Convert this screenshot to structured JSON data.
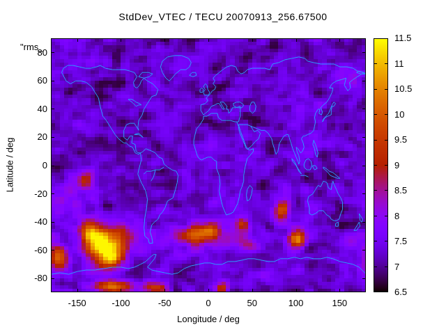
{
  "title": "StdDev_VTEC / TECU 20070913_256.67500",
  "key_label": "\"rms_",
  "x_axis": {
    "label": "Longitude / deg",
    "range": [
      -180,
      180
    ],
    "ticks": [
      -150,
      -100,
      -50,
      0,
      50,
      100,
      150
    ]
  },
  "y_axis": {
    "label": "Latitude / deg",
    "range": [
      -90,
      90
    ],
    "ticks": [
      80,
      60,
      40,
      20,
      0,
      -20,
      -40,
      -60,
      -80
    ]
  },
  "colorbar": {
    "range": [
      6.5,
      11.5
    ],
    "ticks": [
      {
        "v": 6.5,
        "label": "6.5"
      },
      {
        "v": 7,
        "label": "7"
      },
      {
        "v": 7.5,
        "label": "7.5"
      },
      {
        "v": 8,
        "label": "8"
      },
      {
        "v": 8.5,
        "label": "8.5"
      },
      {
        "v": 9,
        "label": "9"
      },
      {
        "v": 9.5,
        "label": "9.5"
      },
      {
        "v": 10,
        "label": "10"
      },
      {
        "v": 10.5,
        "label": "10.5"
      },
      {
        "v": 11,
        "label": "11"
      },
      {
        "v": 11.5,
        "label": "11.5"
      }
    ]
  },
  "colors": {
    "coastline": "#2E9BFF",
    "frame": "#000000",
    "text": "#000000",
    "background": "#ffffff"
  },
  "chart_data": {
    "type": "heatmap",
    "title": "StdDev_VTEC / TECU 20070913_256.67500",
    "xlabel": "Longitude / deg",
    "ylabel": "Latitude / deg",
    "xlim": [
      -180,
      180
    ],
    "ylim": [
      -90,
      90
    ],
    "value_range": [
      6.5,
      11.5
    ],
    "palette": {
      "model": "gnuplot_rgbformulae_7_5_15",
      "r": "sqrt(t)",
      "g": "t^3",
      "b": "max(0,sin(2*pi*t))"
    },
    "grid": {
      "nx": 72,
      "ny": 72,
      "lon_step": 5,
      "lat_step": 2.5
    },
    "background": {
      "base": 7.25,
      "fine_noise_amp": 0.85,
      "coarse_noise_amp": 0.28,
      "coarse_cells": 12,
      "clamp": [
        6.7,
        11.45
      ],
      "seed": 20070913
    },
    "hotspots": [
      {
        "lon": -123,
        "lat": -56,
        "peak": 11.4,
        "slon": 13,
        "slat": 8
      },
      {
        "lon": -136,
        "lat": -46,
        "peak": 9.6,
        "slon": 7,
        "slat": 5
      },
      {
        "lon": -110,
        "lat": -66,
        "peak": 9.9,
        "slon": 9,
        "slat": 5
      },
      {
        "lon": -100,
        "lat": -52,
        "peak": 8.6,
        "slon": 12,
        "slat": 8
      },
      {
        "lon": -172,
        "lat": -66,
        "peak": 9.9,
        "slon": 8,
        "slat": 6
      },
      {
        "lon": -140,
        "lat": -9,
        "peak": 8.9,
        "slon": 7,
        "slat": 5
      },
      {
        "lon": -165,
        "lat": -27,
        "peak": 8.0,
        "slon": 12,
        "slat": 8
      },
      {
        "lon": -15,
        "lat": -49,
        "peak": 9.7,
        "slon": 13,
        "slat": 4.5
      },
      {
        "lon": 4,
        "lat": -46,
        "peak": 8.9,
        "slon": 7,
        "slat": 4
      },
      {
        "lon": 40,
        "lat": -42,
        "peak": 9.2,
        "slon": 5,
        "slat": 3.5
      },
      {
        "lon": 45,
        "lat": -56,
        "peak": 8.3,
        "slon": 10,
        "slat": 4
      },
      {
        "lon": 84,
        "lat": -32,
        "peak": 9.9,
        "slon": 6,
        "slat": 5
      },
      {
        "lon": 101,
        "lat": -52,
        "peak": 10.4,
        "slon": 7,
        "slat": 4.5
      },
      {
        "lon": 165,
        "lat": -55,
        "peak": 8.2,
        "slon": 12,
        "slat": 6
      },
      {
        "lon": -110,
        "lat": -86,
        "peak": 10.3,
        "slon": 16,
        "slat": 3.5
      },
      {
        "lon": -60,
        "lat": -87,
        "peak": 9.7,
        "slon": 10,
        "slat": 3
      },
      {
        "lon": 15,
        "lat": -87,
        "peak": 9.6,
        "slon": 6,
        "slat": 3
      },
      {
        "lon": 165,
        "lat": 63,
        "peak": 7.9,
        "slon": 10,
        "slat": 6
      },
      {
        "lon": 8,
        "lat": 15,
        "peak": 7.9,
        "slon": 8,
        "slat": 6
      },
      {
        "lon": 110,
        "lat": 10,
        "peak": 7.8,
        "slon": 12,
        "slat": 8
      },
      {
        "lon": 0,
        "lat": -50,
        "peak": 7.9,
        "slon": 60,
        "slat": 8
      }
    ],
    "coastlines": [
      [
        -166,
        69,
        -168,
        66,
        -163,
        60,
        -158,
        58,
        -152,
        60,
        -146,
        60,
        -140,
        59,
        -134,
        56,
        -130,
        52,
        -126,
        48,
        -124,
        42,
        -121,
        35,
        -117,
        32,
        -112,
        27,
        -107,
        22,
        -103,
        19,
        -97,
        16,
        -94,
        16,
        -91,
        14,
        -87,
        13,
        -84,
        9,
        -80,
        8,
        -78,
        9
      ],
      [
        -166,
        69,
        -161,
        71,
        -155,
        71,
        -148,
        70,
        -141,
        69,
        -135,
        69,
        -128,
        70,
        -124,
        71,
        -118,
        69,
        -110,
        68,
        -103,
        68,
        -96,
        68,
        -90,
        67,
        -85,
        66,
        -82,
        63,
        -86,
        59,
        -85,
        56,
        -82,
        55,
        -79,
        57,
        -77,
        60,
        -74,
        62,
        -70,
        60,
        -64,
        58,
        -58,
        54,
        -60,
        50,
        -65,
        49,
        -70,
        44,
        -74,
        40,
        -76,
        36,
        -80,
        32,
        -81,
        27,
        -80,
        25,
        -82,
        27,
        -85,
        30,
        -90,
        30,
        -94,
        29,
        -97,
        25,
        -97,
        20,
        -93,
        18,
        -90,
        21,
        -87,
        21,
        -88,
        16,
        -84,
        15,
        -83,
        10,
        -80,
        9,
        -78,
        9
      ],
      [
        -92,
        47,
        -88,
        47,
        -85,
        46,
        -83,
        45,
        -79,
        44,
        -77,
        43,
        -80,
        43,
        -83,
        42,
        -86,
        44,
        -90,
        46,
        -92,
        47
      ],
      [
        -80,
        63,
        -76,
        66,
        -69,
        66,
        -64,
        65,
        -68,
        63,
        -74,
        62,
        -80,
        63
      ],
      [
        -85,
        22,
        -80,
        23,
        -75,
        20,
        -80,
        22,
        -85,
        22
      ],
      [
        -78,
        9,
        -77,
        4,
        -80,
        -3,
        -81,
        -6,
        -77,
        -12,
        -72,
        -18,
        -70,
        -24,
        -71,
        -30,
        -73,
        -37,
        -74,
        -44,
        -73,
        -50,
        -69,
        -52,
        -68,
        -55,
        -64,
        -55,
        -65,
        -51,
        -67,
        -47,
        -65,
        -42,
        -62,
        -40,
        -58,
        -38,
        -56,
        -35,
        -53,
        -33,
        -50,
        -30,
        -47,
        -25,
        -41,
        -23,
        -38,
        -17,
        -36,
        -12,
        -35,
        -7,
        -37,
        -4,
        -42,
        -3,
        -47,
        -1,
        -51,
        1,
        -53,
        5,
        -57,
        6,
        -61,
        9,
        -64,
        10,
        -68,
        11,
        -72,
        12,
        -75,
        10,
        -78,
        9
      ],
      [
        -51,
        -1,
        -56,
        -3,
        -61,
        -3,
        -66,
        -4,
        -71,
        -4,
        -74,
        -6
      ],
      [
        -61,
        -3,
        -63,
        -8,
        -66,
        -11
      ],
      [
        -45,
        60,
        -49,
        62,
        -53,
        66,
        -55,
        70,
        -53,
        74,
        -47,
        77,
        -39,
        78,
        -31,
        78,
        -23,
        76,
        -20,
        73,
        -22,
        70,
        -26,
        68,
        -32,
        68,
        -38,
        65,
        -42,
        62,
        -45,
        60
      ],
      [
        -22,
        64,
        -19,
        66,
        -15,
        66,
        -14,
        64,
        -18,
        63,
        -22,
        64
      ],
      [
        -5,
        50,
        -6,
        52,
        -4,
        54,
        -6,
        56,
        -4,
        58,
        -2,
        57,
        -1,
        54,
        1,
        52,
        0,
        50,
        -5,
        50
      ],
      [
        -10,
        52,
        -10,
        54,
        -8,
        55,
        -6,
        54,
        -7,
        52,
        -10,
        52
      ],
      [
        -9,
        43,
        -4,
        44,
        -1,
        46,
        -3,
        48,
        -1,
        49,
        2,
        51,
        4,
        53,
        7,
        54,
        8,
        56,
        5,
        58,
        7,
        60,
        5,
        62,
        8,
        64,
        12,
        66,
        16,
        68,
        21,
        70,
        26,
        71,
        31,
        70,
        33,
        67,
        37,
        65,
        41,
        66,
        44,
        68,
        50,
        69,
        57,
        69,
        64,
        69,
        70,
        68,
        73,
        72,
        80,
        73,
        87,
        75,
        95,
        76,
        103,
        77,
        110,
        76,
        113,
        74,
        120,
        73,
        128,
        72,
        136,
        72,
        143,
        72,
        150,
        70,
        158,
        70,
        165,
        69,
        170,
        67,
        177,
        66,
        180,
        65
      ],
      [
        -9,
        43,
        -9,
        39,
        -7,
        37,
        -6,
        36,
        -4,
        37,
        0,
        39,
        3,
        42,
        7,
        43,
        10,
        44,
        12,
        44,
        14,
        42,
        16,
        40,
        18,
        40,
        16,
        42,
        13,
        45,
        17,
        45,
        21,
        42,
        20,
        40,
        22,
        40,
        23,
        37,
        24,
        38,
        26,
        39,
        27,
        41,
        31,
        41,
        36,
        42,
        36,
        37,
        36,
        35,
        35,
        33,
        34,
        31,
        32,
        31
      ],
      [
        28,
        44,
        32,
        45,
        36,
        45,
        40,
        43,
        38,
        41,
        33,
        41,
        29,
        42,
        28,
        44
      ],
      [
        50,
        37,
        53,
        39,
        54,
        42,
        52,
        45,
        49,
        45,
        47,
        42,
        47,
        39,
        50,
        37
      ],
      [
        -6,
        35,
        -2,
        35,
        3,
        37,
        10,
        37,
        11,
        34,
        15,
        32,
        20,
        32,
        25,
        32,
        30,
        31,
        32,
        31,
        34,
        28,
        35,
        24,
        37,
        21,
        39,
        18,
        41,
        15,
        43,
        12,
        47,
        11,
        51,
        12,
        51,
        10,
        47,
        7,
        44,
        5,
        42,
        0,
        41,
        -3,
        40,
        -7,
        40,
        -11,
        38,
        -15,
        36,
        -18,
        35,
        -22,
        33,
        -27,
        28,
        -33,
        25,
        -34,
        20,
        -35,
        18,
        -32,
        16,
        -29,
        14,
        -24,
        12,
        -18,
        13,
        -13,
        12,
        -7,
        9,
        -2,
        9,
        3,
        6,
        4,
        3,
        6,
        -1,
        6,
        -5,
        5,
        -8,
        4,
        -11,
        5,
        -13,
        7,
        -15,
        11,
        -17,
        15,
        -17,
        18,
        -16,
        21,
        -14,
        26,
        -10,
        29,
        -6,
        33,
        -6,
        35
      ],
      [
        44,
        -25,
        43,
        -21,
        44,
        -17,
        47,
        -14,
        50,
        -16,
        49,
        -20,
        47,
        -24,
        44,
        -25
      ],
      [
        34,
        29,
        36,
        25,
        39,
        20,
        43,
        13,
        45,
        12,
        49,
        14,
        53,
        17,
        57,
        19,
        59,
        23,
        56,
        25,
        52,
        24,
        48,
        28,
        44,
        29,
        40,
        29,
        34,
        29
      ],
      [
        48,
        28,
        52,
        27,
        56,
        26,
        60,
        25,
        64,
        25,
        68,
        23,
        70,
        21,
        72,
        19,
        73,
        16,
        75,
        12,
        77,
        8,
        79,
        10,
        80,
        13,
        81,
        16,
        83,
        18,
        86,
        21,
        89,
        22,
        91,
        22,
        92,
        20,
        94,
        16,
        96,
        12,
        98,
        9,
        100,
        6,
        102,
        3,
        103,
        1,
        104,
        3,
        103,
        7,
        101,
        10,
        100,
        13,
        102,
        12,
        105,
        9,
        107,
        10,
        109,
        13,
        108,
        16,
        106,
        19,
        108,
        21,
        110,
        21,
        113,
        22,
        117,
        23,
        120,
        25,
        121,
        28,
        122,
        31,
        121,
        34,
        122,
        37,
        125,
        40,
        127,
        40,
        126,
        37,
        129,
        36,
        130,
        38,
        128,
        41,
        131,
        43,
        135,
        45,
        138,
        48,
        141,
        52,
        142,
        55,
        138,
        55,
        141,
        58,
        146,
        60,
        152,
        61,
        157,
        62,
        155,
        57,
        159,
        53,
        162,
        55,
        161,
        59,
        165,
        61,
        170,
        63,
        175,
        65,
        180,
        65
      ],
      [
        130,
        31,
        133,
        34,
        136,
        35,
        140,
        36,
        140,
        39,
        141,
        42,
        143,
        42,
        145,
        44,
        143,
        45,
        141,
        43,
        139,
        40,
        137,
        37,
        134,
        35,
        131,
        33,
        130,
        31
      ],
      [
        95,
        5,
        98,
        3,
        101,
        -1,
        104,
        -4,
        106,
        -6,
        103,
        -4,
        100,
        0,
        96,
        3,
        95,
        5
      ],
      [
        105,
        -7,
        110,
        -7,
        114,
        -8
      ],
      [
        109,
        1,
        111,
        4,
        114,
        5,
        117,
        3,
        118,
        0,
        116,
        -3,
        112,
        -3,
        109,
        -1,
        109,
        1
      ],
      [
        119,
        0,
        122,
        0,
        124,
        -2,
        121,
        -3,
        119,
        -1,
        119,
        0
      ],
      [
        120,
        18,
        122,
        15,
        123,
        13,
        125,
        9,
        124,
        6,
        122,
        8,
        121,
        12,
        119,
        15,
        120,
        18
      ],
      [
        131,
        -1,
        134,
        -2,
        138,
        -4,
        142,
        -5,
        146,
        -7,
        150,
        -9,
        147,
        -9,
        143,
        -8,
        139,
        -7,
        135,
        -4,
        131,
        -2,
        131,
        -1
      ],
      [
        114,
        -22,
        113,
        -25,
        115,
        -30,
        115,
        -34,
        118,
        -35,
        122,
        -34,
        126,
        -32,
        131,
        -32,
        135,
        -35,
        138,
        -36,
        140,
        -38,
        143,
        -39,
        146,
        -39,
        149,
        -38,
        151,
        -34,
        153,
        -31,
        153,
        -26,
        151,
        -23,
        148,
        -20,
        146,
        -17,
        143,
        -13,
        142,
        -11,
        141,
        -13,
        140,
        -17,
        137,
        -16,
        135,
        -12,
        131,
        -11,
        128,
        -15,
        125,
        -14,
        122,
        -17,
        119,
        -20,
        114,
        -22
      ],
      [
        145,
        -41,
        148,
        -40,
        148,
        -43,
        145,
        -43,
        145,
        -41
      ],
      [
        172,
        -34,
        174,
        -36,
        176,
        -38,
        175,
        -40,
        173,
        -39,
        172,
        -34
      ],
      [
        172,
        -40,
        170,
        -42,
        167,
        -45,
        166,
        -46,
        169,
        -46,
        171,
        -44,
        173,
        -43,
        172,
        -40
      ],
      [
        -180,
        -77,
        -170,
        -76,
        -160,
        -77,
        -150,
        -75,
        -140,
        -74,
        -130,
        -74,
        -120,
        -73,
        -110,
        -72,
        -100,
        -72,
        -92,
        -73,
        -85,
        -72,
        -78,
        -70,
        -72,
        -68,
        -67,
        -65,
        -63,
        -63,
        -60,
        -63,
        -62,
        -66,
        -66,
        -69,
        -70,
        -72,
        -65,
        -74,
        -58,
        -75,
        -50,
        -76,
        -42,
        -77,
        -35,
        -76,
        -28,
        -73,
        -20,
        -71,
        -12,
        -70,
        -5,
        -69,
        2,
        -69,
        8,
        -70,
        15,
        -70,
        22,
        -68,
        30,
        -68,
        38,
        -67,
        45,
        -66,
        52,
        -66,
        60,
        -67,
        68,
        -68,
        75,
        -68,
        82,
        -66,
        90,
        -66,
        98,
        -65,
        105,
        -66,
        112,
        -65,
        120,
        -66,
        128,
        -66,
        135,
        -65,
        142,
        -66,
        150,
        -68,
        158,
        -69,
        165,
        -70,
        172,
        -72,
        180,
        -77
      ],
      [
        180,
        65,
        176,
        66,
        171,
        67,
        169,
        66,
        174,
        65,
        180,
        65
      ]
    ]
  }
}
